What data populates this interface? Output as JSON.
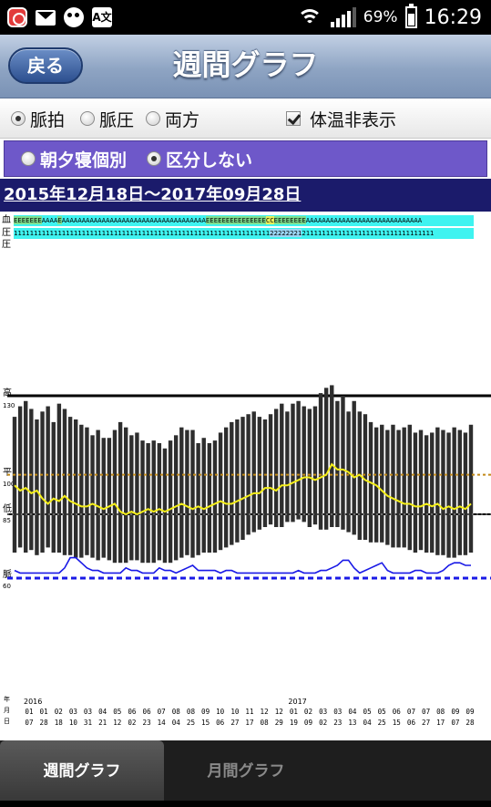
{
  "status_bar": {
    "icons": [
      "app-icon",
      "gmail-icon",
      "face-app-icon",
      "translate-icon"
    ],
    "translate_glyph": "A文",
    "battery": "69%",
    "time": "16:29"
  },
  "header": {
    "back_label": "戻る",
    "title": "週間グラフ"
  },
  "options": {
    "radio_pulse": "脈拍",
    "radio_bp": "脈圧",
    "radio_both": "両方",
    "selected": "脈拍",
    "hide_temp": "体温非表示",
    "hide_temp_checked": true
  },
  "split": {
    "opt_by_time": "朝夕寝個別",
    "opt_no_split": "区分しない",
    "selected": "区分しない"
  },
  "date_range": "2015年12月18日～2017年09月28日",
  "code_rows": {
    "row1_label": "血",
    "row2_label": "圧",
    "row1_segments": [
      {
        "text": "EEEEEEE",
        "hl": "e"
      },
      {
        "text": "AAAA",
        "hl": ""
      },
      {
        "text": "E",
        "hl": "e"
      },
      {
        "text": "AAAAAAAAAAAAAAAAAAAAAAAAAAAAAAAAAAAA",
        "hl": ""
      },
      {
        "text": "EEEEEEEEEEEEEEE",
        "hl": "e"
      },
      {
        "text": "CC",
        "hl": "c"
      },
      {
        "text": "EEEEEEEE",
        "hl": "e"
      },
      {
        "text": "AAAAAAAAAAAAAAAAAAAAAAAAAAAAA",
        "hl": ""
      }
    ],
    "row2_segments": [
      {
        "text": "1111111111111111111111111111111111111111111111111111111111111111",
        "hl": ""
      },
      {
        "text": "22222221",
        "hl": "2"
      },
      {
        "text": "2",
        "hl": ""
      },
      {
        "text": "11111111111111111111111111111111",
        "hl": ""
      }
    ]
  },
  "axis_labels": {
    "high": "高",
    "high_val": "130",
    "avg": "平",
    "avg_val": "100",
    "low": "低",
    "low_val": "85",
    "pulse": "脈",
    "pulse_val": "60",
    "dim_year": "年",
    "dim_month": "月",
    "dim_day": "日"
  },
  "colors": {
    "bar": "#2e2e2e",
    "pulse_line": "#f4ee1a",
    "pulse_rate_line": "#1a1ae6",
    "avg_ref": "#c28a1a",
    "ref_line": "#000000",
    "dashed_pulse": "#1a1ae6"
  },
  "chart_data": {
    "type": "bar",
    "title": "",
    "ylim": [
      60,
      140
    ],
    "reference_lines": {
      "high": 130,
      "avg": 100,
      "low": 85,
      "pulse": 60
    },
    "x_year_labels": [
      {
        "index": 0,
        "year": "2016"
      },
      {
        "index": 19,
        "year": "2017"
      }
    ],
    "x_labels": [
      {
        "m": "01",
        "d": "07"
      },
      {
        "m": "01",
        "d": "28"
      },
      {
        "m": "02",
        "d": "18"
      },
      {
        "m": "03",
        "d": "10"
      },
      {
        "m": "03",
        "d": "31"
      },
      {
        "m": "04",
        "d": "21"
      },
      {
        "m": "05",
        "d": "12"
      },
      {
        "m": "06",
        "d": "02"
      },
      {
        "m": "06",
        "d": "23"
      },
      {
        "m": "07",
        "d": "14"
      },
      {
        "m": "08",
        "d": "04"
      },
      {
        "m": "08",
        "d": "25"
      },
      {
        "m": "09",
        "d": "15"
      },
      {
        "m": "10",
        "d": "06"
      },
      {
        "m": "10",
        "d": "27"
      },
      {
        "m": "11",
        "d": "17"
      },
      {
        "m": "12",
        "d": "08"
      },
      {
        "m": "12",
        "d": "29"
      },
      {
        "m": "01",
        "d": "19"
      },
      {
        "m": "02",
        "d": "09"
      },
      {
        "m": "03",
        "d": "02"
      },
      {
        "m": "03",
        "d": "23"
      },
      {
        "m": "04",
        "d": "13"
      },
      {
        "m": "05",
        "d": "04"
      },
      {
        "m": "05",
        "d": "25"
      },
      {
        "m": "06",
        "d": "15"
      },
      {
        "m": "07",
        "d": "06"
      },
      {
        "m": "07",
        "d": "27"
      },
      {
        "m": "08",
        "d": "17"
      },
      {
        "m": "09",
        "d": "07"
      },
      {
        "m": "09",
        "d": "28"
      }
    ],
    "bars_high": [
      122,
      126,
      128,
      125,
      121,
      124,
      126,
      120,
      127,
      125,
      122,
      121,
      119,
      118,
      115,
      117,
      114,
      114,
      117,
      120,
      118,
      115,
      116,
      113,
      112,
      113,
      112,
      110,
      113,
      115,
      118,
      117,
      117,
      112,
      114,
      112,
      113,
      116,
      118,
      120,
      121,
      122,
      123,
      124,
      122,
      121,
      123,
      125,
      127,
      124,
      127,
      128,
      126,
      125,
      126,
      131,
      133,
      134,
      128,
      130,
      124,
      128,
      124,
      123,
      120,
      118,
      119,
      117,
      119,
      117,
      118,
      119,
      116,
      117,
      115,
      116,
      118,
      117,
      116,
      118,
      117,
      116,
      119
    ],
    "bars_low": [
      70,
      72,
      70,
      71,
      69,
      70,
      72,
      70,
      70,
      69,
      69,
      68,
      68,
      69,
      68,
      67,
      68,
      67,
      66,
      66,
      66,
      67,
      67,
      66,
      66,
      66,
      67,
      66,
      66,
      67,
      68,
      69,
      68,
      69,
      70,
      70,
      70,
      71,
      72,
      73,
      74,
      75,
      77,
      78,
      79,
      80,
      81,
      80,
      80,
      82,
      82,
      83,
      82,
      80,
      81,
      79,
      79,
      80,
      80,
      79,
      78,
      77,
      75,
      75,
      74,
      74,
      74,
      73,
      72,
      72,
      72,
      71,
      70,
      71,
      70,
      70,
      69,
      69,
      68,
      68,
      69,
      69,
      70
    ],
    "line_avg_yellow": [
      96,
      94,
      95,
      93,
      94,
      91,
      89,
      91,
      90,
      92,
      90,
      89,
      88,
      88,
      89,
      88,
      87,
      88,
      89,
      86,
      85,
      86,
      85,
      86,
      87,
      86,
      87,
      86,
      87,
      88,
      89,
      88,
      87,
      88,
      87,
      88,
      89,
      90,
      89,
      89,
      90,
      91,
      92,
      93,
      93,
      95,
      95,
      94,
      96,
      96,
      97,
      98,
      99,
      99,
      98,
      99,
      100,
      104,
      102,
      102,
      101,
      99,
      100,
      98,
      97,
      96,
      94,
      92,
      91,
      90,
      89,
      89,
      88,
      88,
      89,
      88,
      89,
      87,
      88,
      87,
      88,
      87,
      89
    ],
    "line_pulse_blue": [
      63,
      62,
      62,
      62,
      62,
      62,
      62,
      62,
      62,
      64,
      68,
      68,
      66,
      64,
      63,
      63,
      62,
      62,
      62,
      62,
      64,
      63,
      63,
      62,
      62,
      62,
      64,
      63,
      63,
      62,
      63,
      64,
      65,
      63,
      63,
      63,
      63,
      62,
      63,
      63,
      62,
      62,
      62,
      62,
      62,
      62,
      62,
      62,
      62,
      62,
      62,
      63,
      62,
      62,
      62,
      63,
      63,
      64,
      65,
      67,
      67,
      64,
      62,
      63,
      64,
      65,
      66,
      63,
      62,
      62,
      62,
      62,
      63,
      63,
      62,
      62,
      62,
      63,
      65,
      66,
      66,
      65,
      65
    ]
  },
  "tabs": {
    "weekly": "週間グラフ",
    "monthly": "月間グラフ"
  }
}
